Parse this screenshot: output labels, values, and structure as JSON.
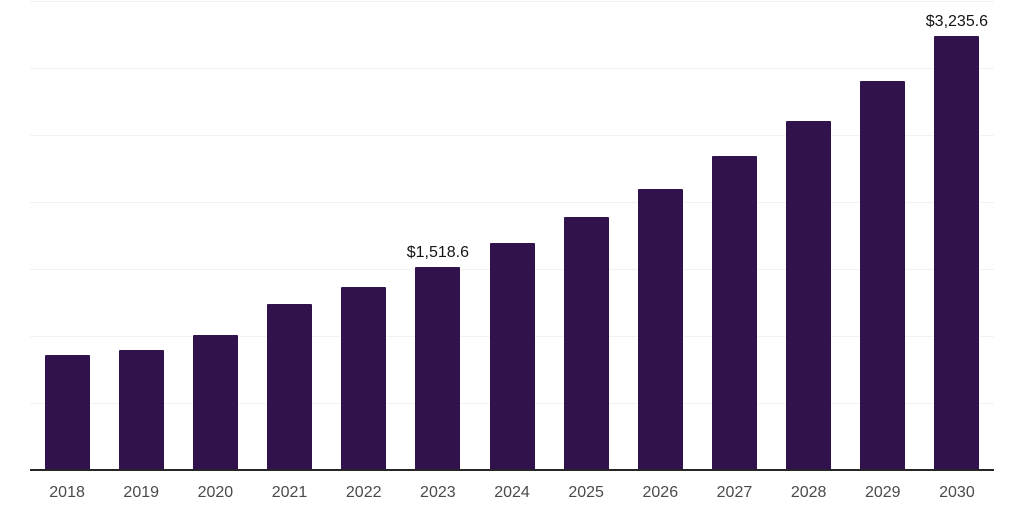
{
  "chart_data": {
    "type": "bar",
    "title": "",
    "xlabel": "",
    "ylabel": "",
    "categories": [
      "2018",
      "2019",
      "2020",
      "2021",
      "2022",
      "2023",
      "2024",
      "2025",
      "2026",
      "2027",
      "2028",
      "2029",
      "2030"
    ],
    "values": [
      860,
      893,
      1005,
      1237,
      1366,
      1518.6,
      1692,
      1885,
      2100,
      2340,
      2607,
      2905,
      3235.6
    ],
    "labeled_points": [
      {
        "category": "2023",
        "label": "$1,518.6"
      },
      {
        "category": "2030",
        "label": "$3,235.6"
      }
    ],
    "ylim": [
      0,
      3500
    ],
    "gridline_step": 500,
    "grid": true,
    "legend": false,
    "y_tick_labels_visible": false,
    "colors": {
      "bar": "#32124d",
      "axis": "#262626",
      "gridline": "#f2f2f2",
      "tick_label": "#4a4a4a",
      "data_label": "#141414",
      "background": "#ffffff"
    }
  }
}
